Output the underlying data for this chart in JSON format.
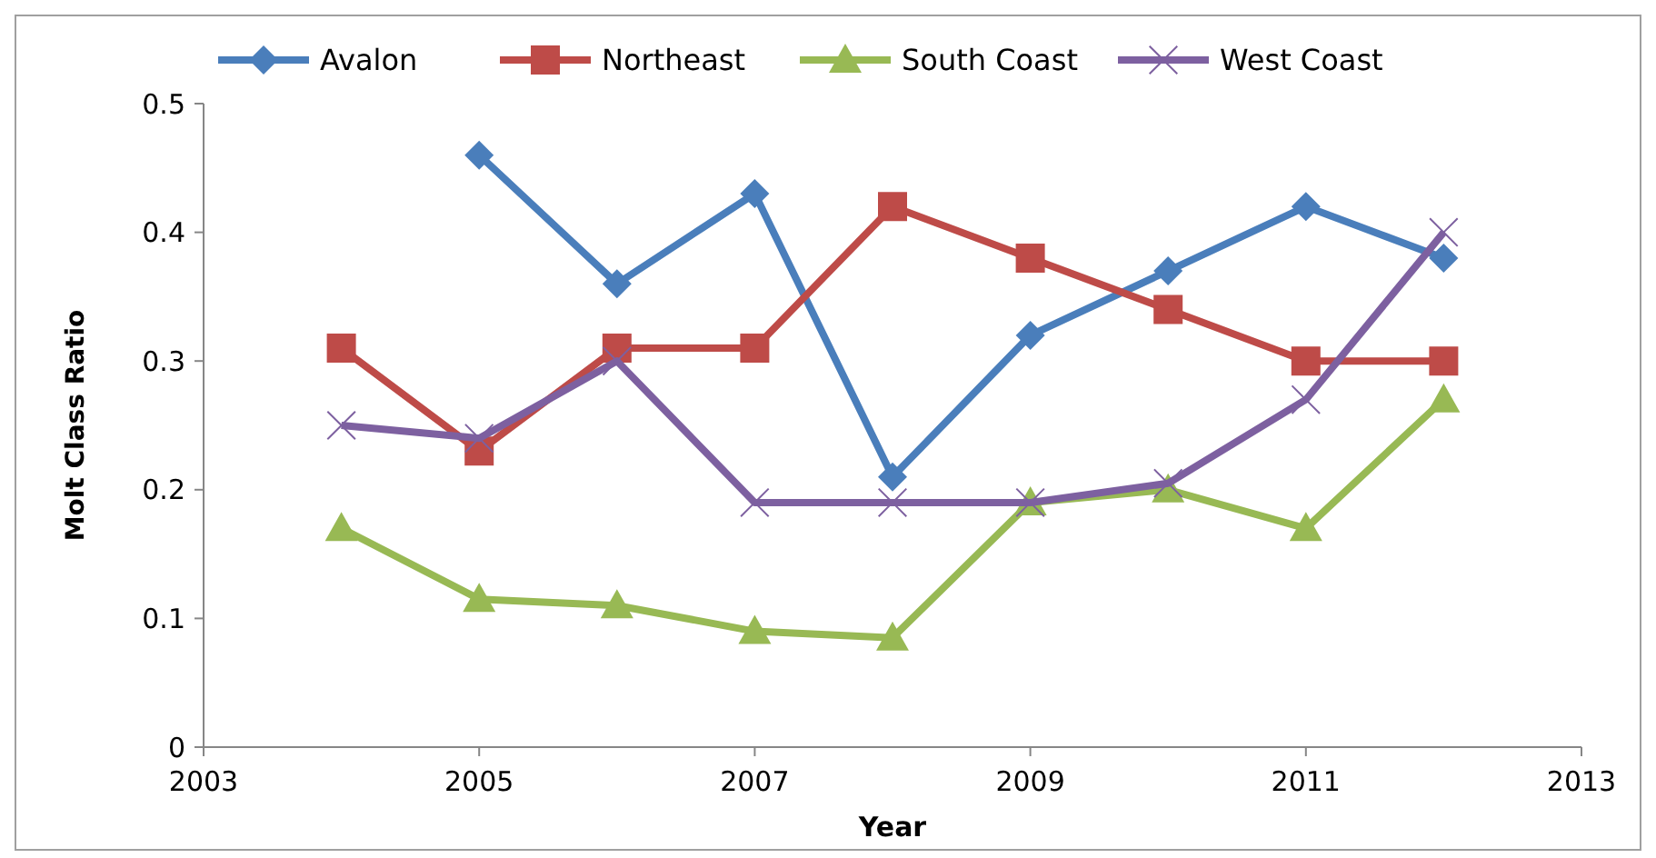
{
  "chart_data": {
    "type": "line",
    "xlabel": "Year",
    "ylabel": "Molt Class Ratio",
    "x": [
      2004,
      2005,
      2006,
      2007,
      2008,
      2009,
      2010,
      2011,
      2012
    ],
    "series": [
      {
        "name": "Avalon",
        "color": "#4a7ebb",
        "marker": "diamond",
        "values": [
          null,
          0.46,
          0.36,
          0.43,
          0.21,
          0.32,
          0.37,
          0.42,
          0.38
        ]
      },
      {
        "name": "Northeast",
        "color": "#be4b48",
        "marker": "square",
        "values": [
          0.31,
          0.23,
          0.31,
          0.31,
          0.42,
          0.38,
          0.34,
          0.3,
          0.3
        ]
      },
      {
        "name": "South Coast",
        "color": "#98b954",
        "marker": "triangle",
        "values": [
          0.17,
          0.115,
          0.11,
          0.09,
          0.085,
          0.19,
          0.2,
          0.17,
          0.27
        ]
      },
      {
        "name": "West Coast",
        "color": "#7d60a0",
        "marker": "cross",
        "values": [
          0.25,
          0.24,
          0.3,
          0.19,
          0.19,
          0.19,
          0.205,
          0.27,
          0.4
        ]
      }
    ],
    "xlim": [
      2003,
      2013
    ],
    "xticks": [
      2003,
      2005,
      2007,
      2009,
      2011,
      2013
    ],
    "ylim": [
      0,
      0.5
    ],
    "yticks": [
      0,
      0.1,
      0.2,
      0.3,
      0.4,
      0.5
    ],
    "grid": false,
    "legend": "top",
    "line_style": "solid"
  }
}
